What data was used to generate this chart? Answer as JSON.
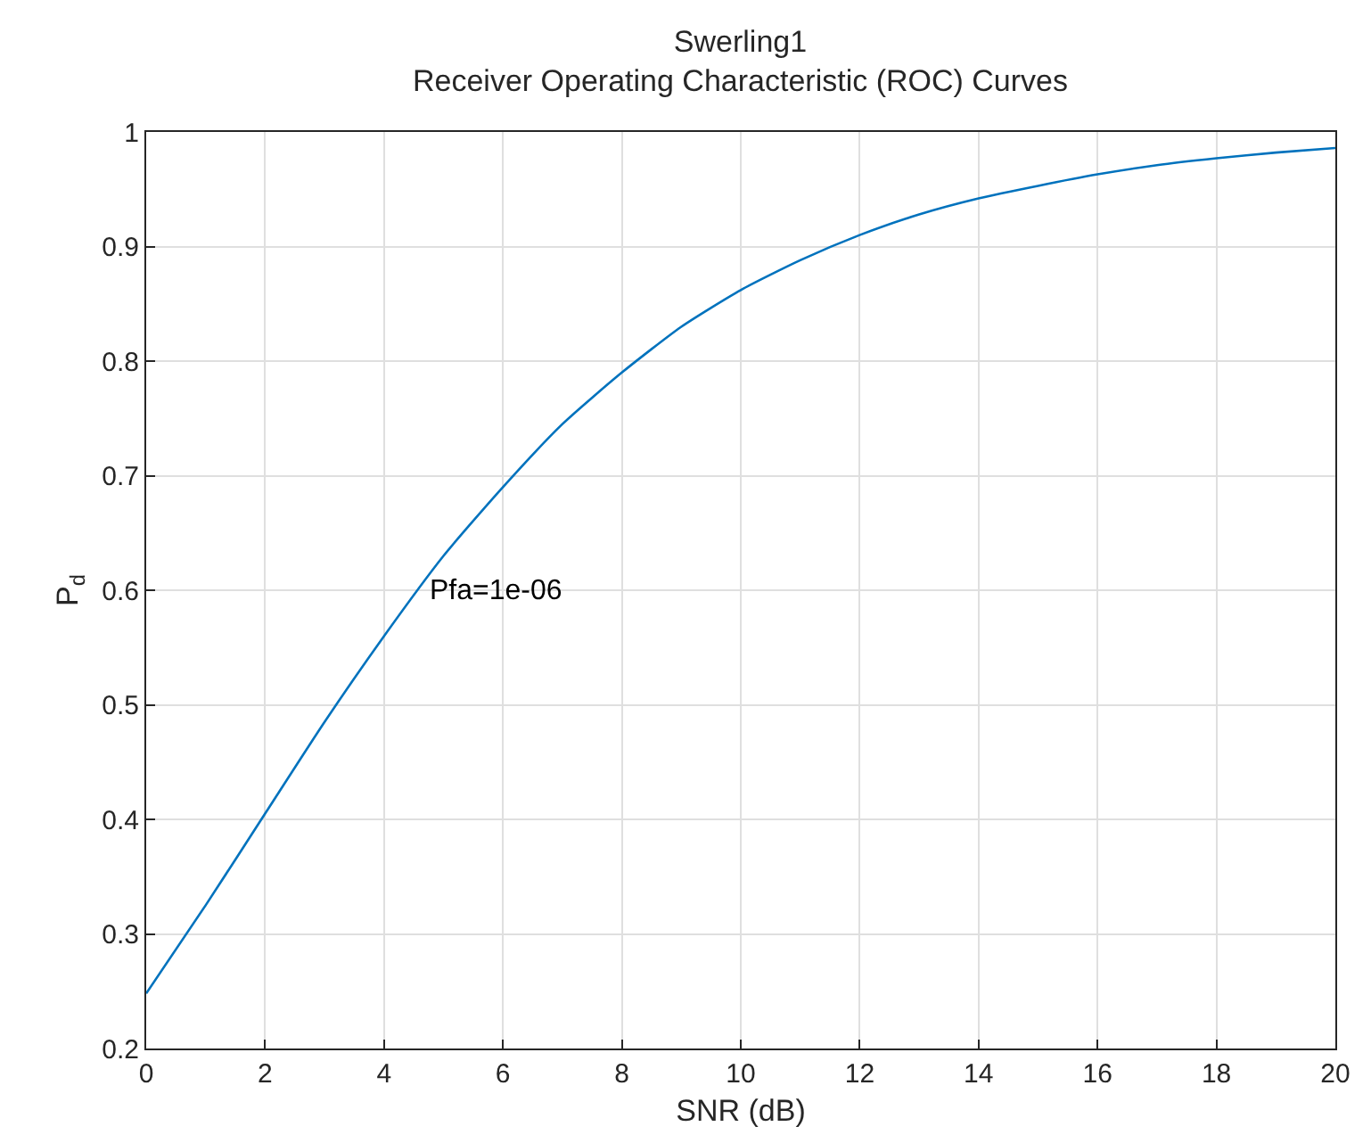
{
  "chart_data": {
    "type": "line",
    "title": "Swerling1",
    "subtitle": "Receiver Operating Characteristic (ROC) Curves",
    "xlabel": "SNR (dB)",
    "ylabel": "P$_{d}$",
    "x": [
      0,
      1,
      2,
      3,
      4,
      5,
      6,
      7,
      8,
      9,
      10,
      11,
      12,
      13,
      14,
      15,
      16,
      17,
      18,
      19,
      20
    ],
    "series": [
      {
        "color": "#0072bd",
        "values": [
          0.248,
          0.325,
          0.405,
          0.485,
          0.56,
          0.63,
          0.69,
          0.745,
          0.79,
          0.83,
          0.862,
          0.888,
          0.91,
          0.928,
          0.942,
          0.953,
          0.963,
          0.971,
          0.977,
          0.982,
          0.986
        ]
      }
    ],
    "xlim": [
      0,
      20
    ],
    "xticks": [
      0,
      2,
      4,
      6,
      8,
      10,
      12,
      14,
      16,
      18,
      20
    ],
    "ylim": [
      0.2,
      1
    ],
    "yticks": [
      0.2,
      0.3,
      0.4,
      0.5,
      0.6,
      0.7,
      0.8,
      0.9,
      1
    ],
    "annotations": [
      {
        "text": "Pfa=1e-06",
        "x": 4.7,
        "y": 0.6
      }
    ],
    "grid": true,
    "legend": false,
    "marker": "none",
    "line_style": "solid"
  }
}
